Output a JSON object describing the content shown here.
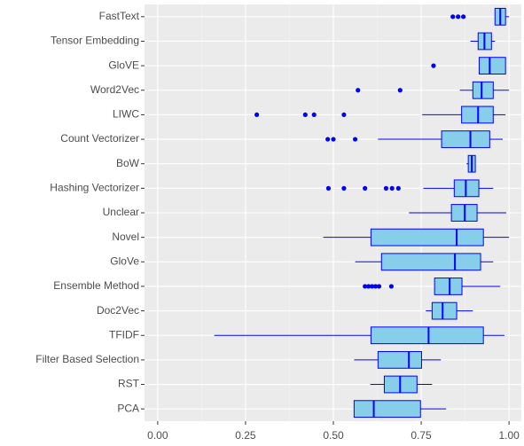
{
  "chart_data": {
    "type": "boxplot_horizontal",
    "categories": [
      "FastText",
      "Tensor Embedding",
      "GloVE",
      "Word2Vec",
      "LIWC",
      "Count Vectorizer",
      "BoW",
      "Hashing Vectorizer",
      "Unclear",
      "Novel",
      "GloVe",
      "Ensemble Method",
      "Doc2Vec",
      "TFIDF",
      "Filter Based Selection",
      "RST",
      "PCA"
    ],
    "boxes": [
      {
        "min": 0.96,
        "q1": 0.96,
        "median": 0.975,
        "q3": 0.99,
        "max": 1.0,
        "outliers": [
          0.84,
          0.855,
          0.87
        ]
      },
      {
        "min": 0.89,
        "q1": 0.912,
        "median": 0.93,
        "q3": 0.95,
        "max": 0.96,
        "outliers": []
      },
      {
        "min": 0.915,
        "q1": 0.915,
        "median": 0.945,
        "q3": 0.99,
        "max": 0.99,
        "outliers": [
          0.785
        ]
      },
      {
        "min": 0.86,
        "q1": 0.897,
        "median": 0.922,
        "q3": 0.955,
        "max": 1.0,
        "outliers": [
          0.57,
          0.69
        ]
      },
      {
        "min": 0.753,
        "q1": 0.865,
        "median": 0.912,
        "q3": 0.955,
        "max": 0.99,
        "outliers": [
          0.282,
          0.42,
          0.445,
          0.53
        ]
      },
      {
        "min": 0.627,
        "q1": 0.808,
        "median": 0.89,
        "q3": 0.945,
        "max": 0.982,
        "outliers": [
          0.484,
          0.5,
          0.562
        ]
      },
      {
        "min": 0.879,
        "q1": 0.884,
        "median": 0.894,
        "q3": 0.904,
        "max": 0.904,
        "outliers": []
      },
      {
        "min": 0.756,
        "q1": 0.844,
        "median": 0.877,
        "q3": 0.914,
        "max": 0.955,
        "outliers": [
          0.486,
          0.53,
          0.59,
          0.65,
          0.667,
          0.685
        ]
      },
      {
        "min": 0.715,
        "q1": 0.836,
        "median": 0.874,
        "q3": 0.909,
        "max": 0.992,
        "outliers": []
      },
      {
        "min": 0.471,
        "q1": 0.607,
        "median": 0.851,
        "q3": 0.927,
        "max": 1.0,
        "outliers": []
      },
      {
        "min": 0.562,
        "q1": 0.637,
        "median": 0.846,
        "q3": 0.919,
        "max": 0.955,
        "outliers": []
      },
      {
        "min": 0.788,
        "q1": 0.788,
        "median": 0.831,
        "q3": 0.866,
        "max": 0.975,
        "outliers": [
          0.59,
          0.6,
          0.61,
          0.62,
          0.63,
          0.665
        ]
      },
      {
        "min": 0.763,
        "q1": 0.781,
        "median": 0.811,
        "q3": 0.851,
        "max": 0.897,
        "outliers": []
      },
      {
        "min": 0.161,
        "q1": 0.607,
        "median": 0.771,
        "q3": 0.927,
        "max": 0.987,
        "outliers": []
      },
      {
        "min": 0.559,
        "q1": 0.627,
        "median": 0.715,
        "q3": 0.751,
        "max": 0.806,
        "outliers": []
      },
      {
        "min": 0.605,
        "q1": 0.645,
        "median": 0.69,
        "q3": 0.738,
        "max": 0.781,
        "outliers": []
      },
      {
        "min": 0.559,
        "q1": 0.559,
        "median": 0.615,
        "q3": 0.748,
        "max": 0.821,
        "outliers": []
      }
    ],
    "fill": "#87ceeb",
    "stroke": "#0000ff",
    "xlim": [
      -0.0375,
      1.035
    ],
    "xticks": [
      {
        "value": 0,
        "label": "0.00"
      },
      {
        "value": 0.25,
        "label": "0.25"
      },
      {
        "value": 0.5,
        "label": "0.50"
      },
      {
        "value": 0.75,
        "label": "0.75"
      },
      {
        "value": 1,
        "label": "1.00"
      }
    ],
    "grid": true
  }
}
